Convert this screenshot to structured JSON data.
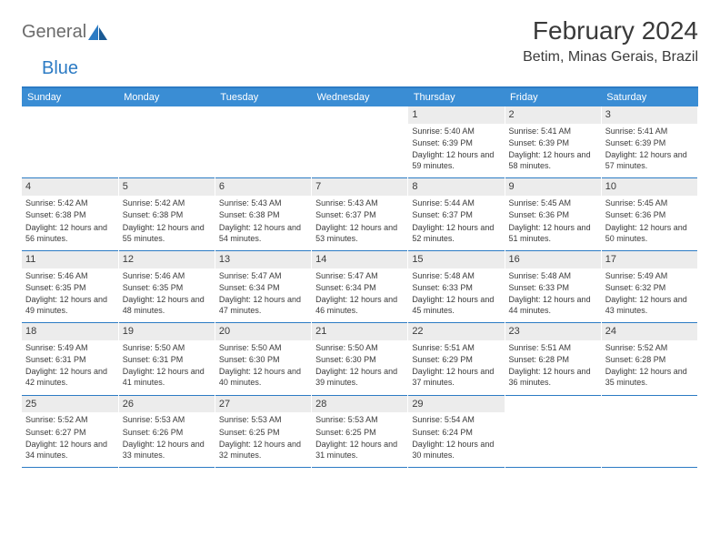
{
  "logo": {
    "part1": "General",
    "part2": "Blue"
  },
  "title": "February 2024",
  "location": "Betim, Minas Gerais, Brazil",
  "colors": {
    "header_bg": "#3a8dd4",
    "border": "#2c7bc4",
    "daynum_bg": "#ececec",
    "text": "#3a3a3a",
    "logo_gray": "#6b6b6b",
    "logo_blue": "#2c7bc4"
  },
  "day_headers": [
    "Sunday",
    "Monday",
    "Tuesday",
    "Wednesday",
    "Thursday",
    "Friday",
    "Saturday"
  ],
  "weeks": [
    [
      {
        "empty": true
      },
      {
        "empty": true
      },
      {
        "empty": true
      },
      {
        "empty": true
      },
      {
        "day": "1",
        "sunrise": "Sunrise: 5:40 AM",
        "sunset": "Sunset: 6:39 PM",
        "daylight": "Daylight: 12 hours and 59 minutes."
      },
      {
        "day": "2",
        "sunrise": "Sunrise: 5:41 AM",
        "sunset": "Sunset: 6:39 PM",
        "daylight": "Daylight: 12 hours and 58 minutes."
      },
      {
        "day": "3",
        "sunrise": "Sunrise: 5:41 AM",
        "sunset": "Sunset: 6:39 PM",
        "daylight": "Daylight: 12 hours and 57 minutes."
      }
    ],
    [
      {
        "day": "4",
        "sunrise": "Sunrise: 5:42 AM",
        "sunset": "Sunset: 6:38 PM",
        "daylight": "Daylight: 12 hours and 56 minutes."
      },
      {
        "day": "5",
        "sunrise": "Sunrise: 5:42 AM",
        "sunset": "Sunset: 6:38 PM",
        "daylight": "Daylight: 12 hours and 55 minutes."
      },
      {
        "day": "6",
        "sunrise": "Sunrise: 5:43 AM",
        "sunset": "Sunset: 6:38 PM",
        "daylight": "Daylight: 12 hours and 54 minutes."
      },
      {
        "day": "7",
        "sunrise": "Sunrise: 5:43 AM",
        "sunset": "Sunset: 6:37 PM",
        "daylight": "Daylight: 12 hours and 53 minutes."
      },
      {
        "day": "8",
        "sunrise": "Sunrise: 5:44 AM",
        "sunset": "Sunset: 6:37 PM",
        "daylight": "Daylight: 12 hours and 52 minutes."
      },
      {
        "day": "9",
        "sunrise": "Sunrise: 5:45 AM",
        "sunset": "Sunset: 6:36 PM",
        "daylight": "Daylight: 12 hours and 51 minutes."
      },
      {
        "day": "10",
        "sunrise": "Sunrise: 5:45 AM",
        "sunset": "Sunset: 6:36 PM",
        "daylight": "Daylight: 12 hours and 50 minutes."
      }
    ],
    [
      {
        "day": "11",
        "sunrise": "Sunrise: 5:46 AM",
        "sunset": "Sunset: 6:35 PM",
        "daylight": "Daylight: 12 hours and 49 minutes."
      },
      {
        "day": "12",
        "sunrise": "Sunrise: 5:46 AM",
        "sunset": "Sunset: 6:35 PM",
        "daylight": "Daylight: 12 hours and 48 minutes."
      },
      {
        "day": "13",
        "sunrise": "Sunrise: 5:47 AM",
        "sunset": "Sunset: 6:34 PM",
        "daylight": "Daylight: 12 hours and 47 minutes."
      },
      {
        "day": "14",
        "sunrise": "Sunrise: 5:47 AM",
        "sunset": "Sunset: 6:34 PM",
        "daylight": "Daylight: 12 hours and 46 minutes."
      },
      {
        "day": "15",
        "sunrise": "Sunrise: 5:48 AM",
        "sunset": "Sunset: 6:33 PM",
        "daylight": "Daylight: 12 hours and 45 minutes."
      },
      {
        "day": "16",
        "sunrise": "Sunrise: 5:48 AM",
        "sunset": "Sunset: 6:33 PM",
        "daylight": "Daylight: 12 hours and 44 minutes."
      },
      {
        "day": "17",
        "sunrise": "Sunrise: 5:49 AM",
        "sunset": "Sunset: 6:32 PM",
        "daylight": "Daylight: 12 hours and 43 minutes."
      }
    ],
    [
      {
        "day": "18",
        "sunrise": "Sunrise: 5:49 AM",
        "sunset": "Sunset: 6:31 PM",
        "daylight": "Daylight: 12 hours and 42 minutes."
      },
      {
        "day": "19",
        "sunrise": "Sunrise: 5:50 AM",
        "sunset": "Sunset: 6:31 PM",
        "daylight": "Daylight: 12 hours and 41 minutes."
      },
      {
        "day": "20",
        "sunrise": "Sunrise: 5:50 AM",
        "sunset": "Sunset: 6:30 PM",
        "daylight": "Daylight: 12 hours and 40 minutes."
      },
      {
        "day": "21",
        "sunrise": "Sunrise: 5:50 AM",
        "sunset": "Sunset: 6:30 PM",
        "daylight": "Daylight: 12 hours and 39 minutes."
      },
      {
        "day": "22",
        "sunrise": "Sunrise: 5:51 AM",
        "sunset": "Sunset: 6:29 PM",
        "daylight": "Daylight: 12 hours and 37 minutes."
      },
      {
        "day": "23",
        "sunrise": "Sunrise: 5:51 AM",
        "sunset": "Sunset: 6:28 PM",
        "daylight": "Daylight: 12 hours and 36 minutes."
      },
      {
        "day": "24",
        "sunrise": "Sunrise: 5:52 AM",
        "sunset": "Sunset: 6:28 PM",
        "daylight": "Daylight: 12 hours and 35 minutes."
      }
    ],
    [
      {
        "day": "25",
        "sunrise": "Sunrise: 5:52 AM",
        "sunset": "Sunset: 6:27 PM",
        "daylight": "Daylight: 12 hours and 34 minutes."
      },
      {
        "day": "26",
        "sunrise": "Sunrise: 5:53 AM",
        "sunset": "Sunset: 6:26 PM",
        "daylight": "Daylight: 12 hours and 33 minutes."
      },
      {
        "day": "27",
        "sunrise": "Sunrise: 5:53 AM",
        "sunset": "Sunset: 6:25 PM",
        "daylight": "Daylight: 12 hours and 32 minutes."
      },
      {
        "day": "28",
        "sunrise": "Sunrise: 5:53 AM",
        "sunset": "Sunset: 6:25 PM",
        "daylight": "Daylight: 12 hours and 31 minutes."
      },
      {
        "day": "29",
        "sunrise": "Sunrise: 5:54 AM",
        "sunset": "Sunset: 6:24 PM",
        "daylight": "Daylight: 12 hours and 30 minutes."
      },
      {
        "empty": true
      },
      {
        "empty": true
      }
    ]
  ]
}
